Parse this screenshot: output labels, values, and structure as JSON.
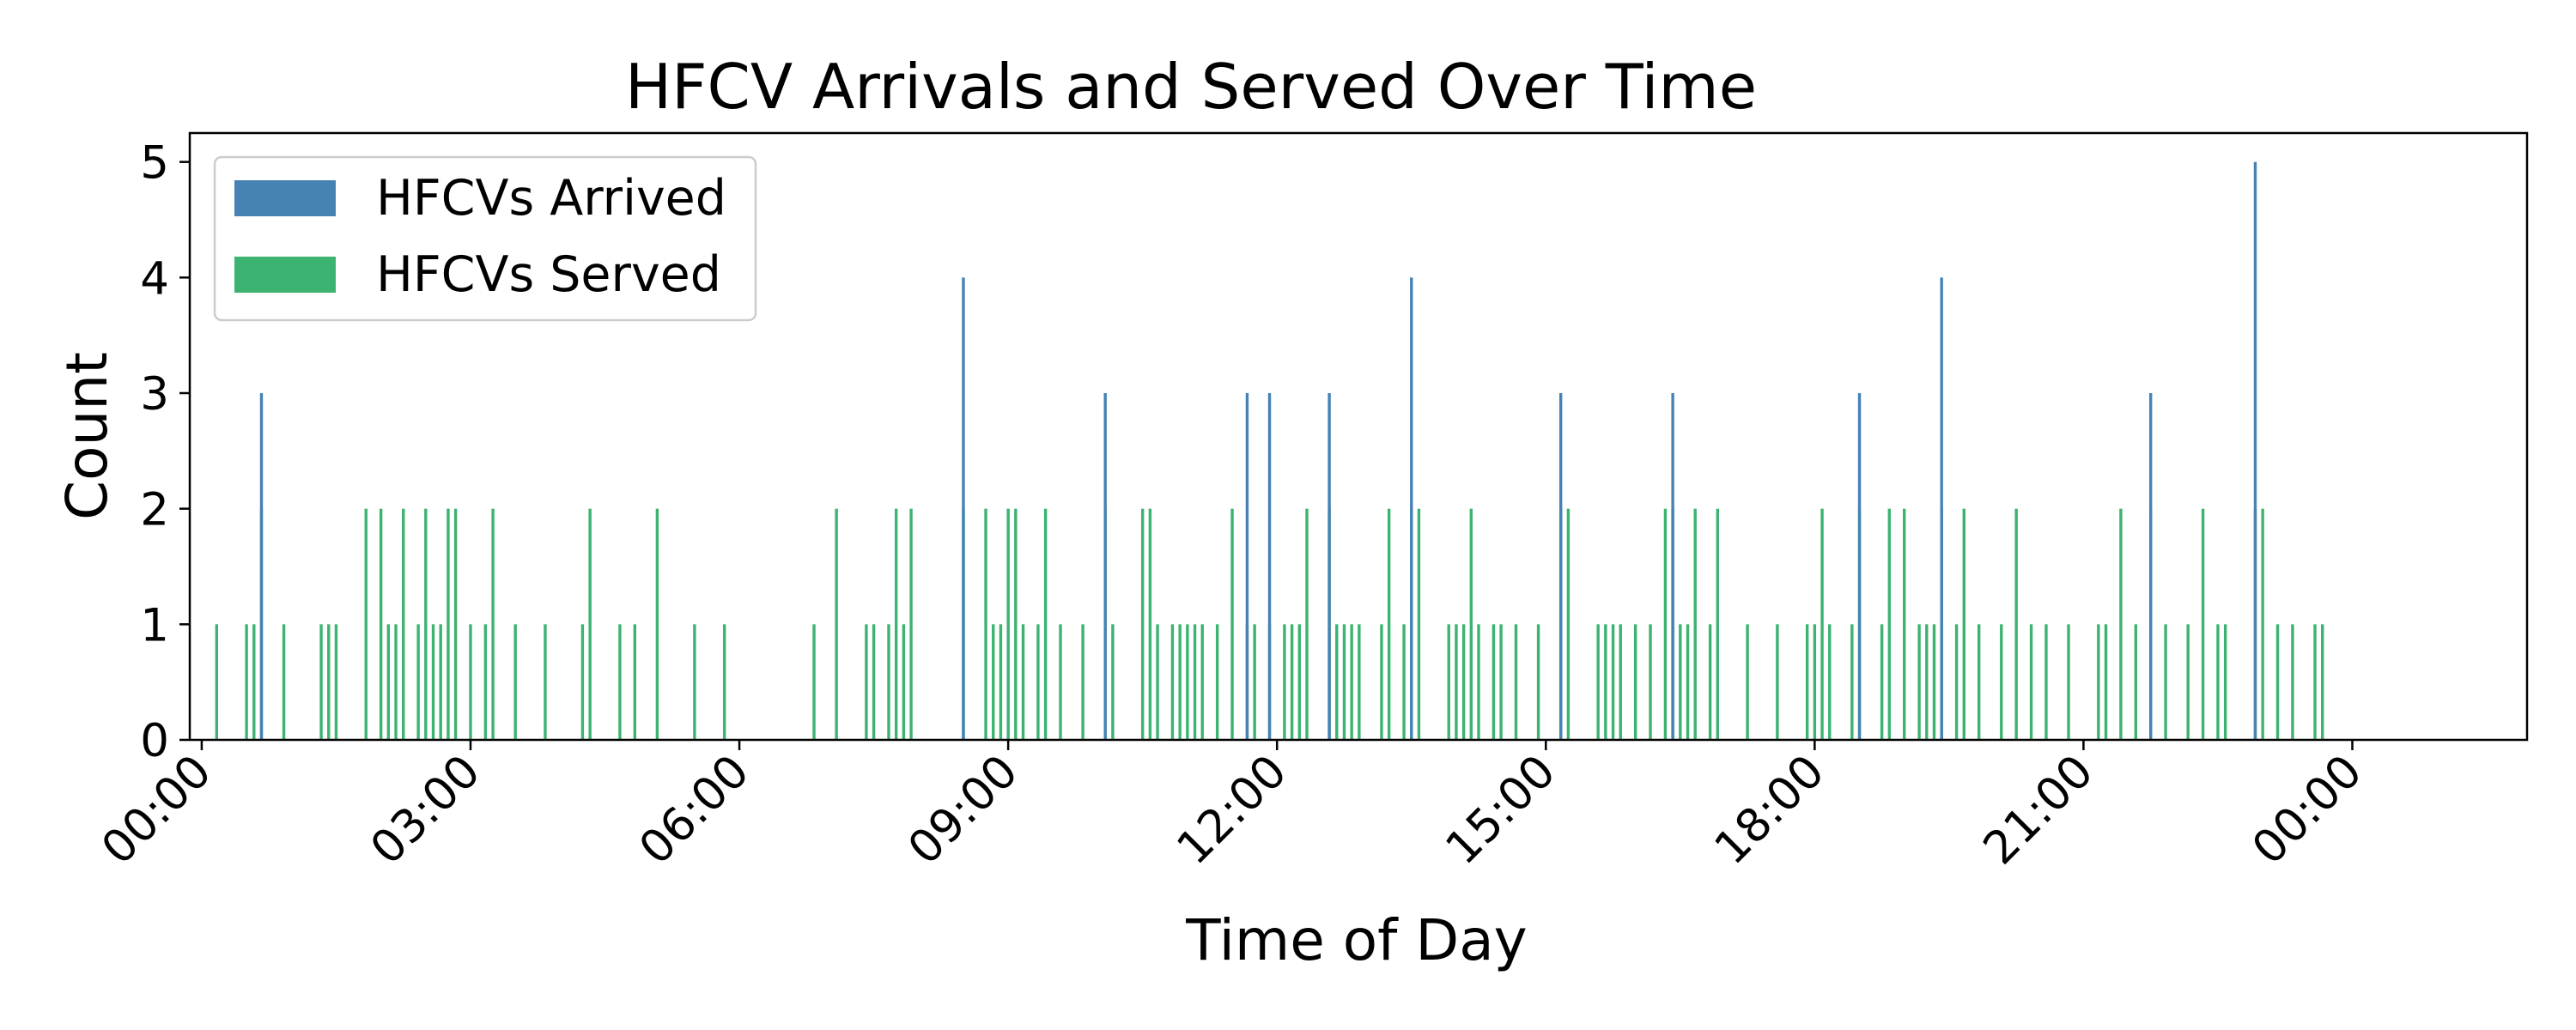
{
  "chart_data": {
    "type": "bar",
    "title": "HFCV Arrivals and Served Over Time",
    "xlabel": "Time of Day",
    "ylabel": "Count",
    "x_unit": "time of day (HH:MM)",
    "xlim": [
      "23:52",
      "25:57"
    ],
    "ylim": [
      0,
      5.25
    ],
    "x_ticks": [
      "00:00",
      "03:00",
      "06:00",
      "09:00",
      "12:00",
      "15:00",
      "18:00",
      "21:00",
      "00:00"
    ],
    "y_ticks": [
      "0",
      "1",
      "2",
      "3",
      "4",
      "5"
    ],
    "grid": false,
    "legend_position": "top-left",
    "colors": {
      "arrived": "#4682b4",
      "served": "#3cb371"
    },
    "series": [
      {
        "name": "HFCVs Arrived",
        "points": [
          {
            "x": "00:40",
            "y": 3
          },
          {
            "x": "08:30",
            "y": 4
          },
          {
            "x": "10:05",
            "y": 3
          },
          {
            "x": "11:40",
            "y": 3
          },
          {
            "x": "11:55",
            "y": 3
          },
          {
            "x": "12:35",
            "y": 3
          },
          {
            "x": "13:30",
            "y": 4
          },
          {
            "x": "15:10",
            "y": 3
          },
          {
            "x": "16:25",
            "y": 3
          },
          {
            "x": "18:30",
            "y": 3
          },
          {
            "x": "19:25",
            "y": 4
          },
          {
            "x": "21:45",
            "y": 3
          },
          {
            "x": "22:55",
            "y": 5
          }
        ]
      },
      {
        "name": "HFCVs Served",
        "points": [
          {
            "x": "00:10",
            "y": 1
          },
          {
            "x": "00:30",
            "y": 1
          },
          {
            "x": "00:35",
            "y": 1
          },
          {
            "x": "00:40",
            "y": 2
          },
          {
            "x": "00:55",
            "y": 1
          },
          {
            "x": "01:20",
            "y": 1
          },
          {
            "x": "01:25",
            "y": 1
          },
          {
            "x": "01:30",
            "y": 1
          },
          {
            "x": "01:50",
            "y": 2
          },
          {
            "x": "02:00",
            "y": 2
          },
          {
            "x": "02:05",
            "y": 1
          },
          {
            "x": "02:10",
            "y": 1
          },
          {
            "x": "02:15",
            "y": 2
          },
          {
            "x": "02:25",
            "y": 1
          },
          {
            "x": "02:30",
            "y": 2
          },
          {
            "x": "02:35",
            "y": 1
          },
          {
            "x": "02:40",
            "y": 1
          },
          {
            "x": "02:45",
            "y": 2
          },
          {
            "x": "02:50",
            "y": 2
          },
          {
            "x": "03:00",
            "y": 1
          },
          {
            "x": "03:10",
            "y": 1
          },
          {
            "x": "03:15",
            "y": 2
          },
          {
            "x": "03:30",
            "y": 1
          },
          {
            "x": "03:50",
            "y": 1
          },
          {
            "x": "04:15",
            "y": 1
          },
          {
            "x": "04:20",
            "y": 2
          },
          {
            "x": "04:40",
            "y": 1
          },
          {
            "x": "04:50",
            "y": 1
          },
          {
            "x": "05:05",
            "y": 2
          },
          {
            "x": "05:30",
            "y": 1
          },
          {
            "x": "05:50",
            "y": 1
          },
          {
            "x": "06:50",
            "y": 1
          },
          {
            "x": "07:05",
            "y": 2
          },
          {
            "x": "07:25",
            "y": 1
          },
          {
            "x": "07:30",
            "y": 1
          },
          {
            "x": "07:40",
            "y": 1
          },
          {
            "x": "07:45",
            "y": 2
          },
          {
            "x": "07:50",
            "y": 1
          },
          {
            "x": "07:55",
            "y": 2
          },
          {
            "x": "08:30",
            "y": 2
          },
          {
            "x": "08:45",
            "y": 2
          },
          {
            "x": "08:50",
            "y": 1
          },
          {
            "x": "08:55",
            "y": 1
          },
          {
            "x": "09:00",
            "y": 2
          },
          {
            "x": "09:05",
            "y": 2
          },
          {
            "x": "09:10",
            "y": 1
          },
          {
            "x": "09:20",
            "y": 1
          },
          {
            "x": "09:25",
            "y": 2
          },
          {
            "x": "09:35",
            "y": 1
          },
          {
            "x": "09:50",
            "y": 1
          },
          {
            "x": "10:05",
            "y": 2
          },
          {
            "x": "10:10",
            "y": 1
          },
          {
            "x": "10:30",
            "y": 2
          },
          {
            "x": "10:35",
            "y": 2
          },
          {
            "x": "10:40",
            "y": 1
          },
          {
            "x": "10:50",
            "y": 1
          },
          {
            "x": "10:55",
            "y": 1
          },
          {
            "x": "11:00",
            "y": 1
          },
          {
            "x": "11:05",
            "y": 1
          },
          {
            "x": "11:10",
            "y": 1
          },
          {
            "x": "11:20",
            "y": 1
          },
          {
            "x": "11:30",
            "y": 2
          },
          {
            "x": "11:40",
            "y": 1
          },
          {
            "x": "11:45",
            "y": 1
          },
          {
            "x": "11:55",
            "y": 1
          },
          {
            "x": "12:05",
            "y": 1
          },
          {
            "x": "12:10",
            "y": 1
          },
          {
            "x": "12:15",
            "y": 1
          },
          {
            "x": "12:20",
            "y": 2
          },
          {
            "x": "12:35",
            "y": 2
          },
          {
            "x": "12:40",
            "y": 1
          },
          {
            "x": "12:45",
            "y": 1
          },
          {
            "x": "12:50",
            "y": 1
          },
          {
            "x": "12:55",
            "y": 1
          },
          {
            "x": "13:10",
            "y": 1
          },
          {
            "x": "13:15",
            "y": 2
          },
          {
            "x": "13:25",
            "y": 1
          },
          {
            "x": "13:30",
            "y": 2
          },
          {
            "x": "13:35",
            "y": 2
          },
          {
            "x": "13:55",
            "y": 1
          },
          {
            "x": "14:00",
            "y": 1
          },
          {
            "x": "14:05",
            "y": 1
          },
          {
            "x": "14:10",
            "y": 2
          },
          {
            "x": "14:15",
            "y": 1
          },
          {
            "x": "14:25",
            "y": 1
          },
          {
            "x": "14:30",
            "y": 1
          },
          {
            "x": "14:40",
            "y": 1
          },
          {
            "x": "14:55",
            "y": 1
          },
          {
            "x": "15:10",
            "y": 2
          },
          {
            "x": "15:15",
            "y": 2
          },
          {
            "x": "15:35",
            "y": 1
          },
          {
            "x": "15:40",
            "y": 1
          },
          {
            "x": "15:45",
            "y": 1
          },
          {
            "x": "15:50",
            "y": 1
          },
          {
            "x": "16:00",
            "y": 1
          },
          {
            "x": "16:10",
            "y": 1
          },
          {
            "x": "16:20",
            "y": 2
          },
          {
            "x": "16:25",
            "y": 2
          },
          {
            "x": "16:30",
            "y": 1
          },
          {
            "x": "16:35",
            "y": 1
          },
          {
            "x": "16:40",
            "y": 2
          },
          {
            "x": "16:50",
            "y": 1
          },
          {
            "x": "16:55",
            "y": 2
          },
          {
            "x": "17:15",
            "y": 1
          },
          {
            "x": "17:35",
            "y": 1
          },
          {
            "x": "17:55",
            "y": 1
          },
          {
            "x": "18:00",
            "y": 1
          },
          {
            "x": "18:05",
            "y": 2
          },
          {
            "x": "18:10",
            "y": 1
          },
          {
            "x": "18:25",
            "y": 1
          },
          {
            "x": "18:30",
            "y": 2
          },
          {
            "x": "18:45",
            "y": 1
          },
          {
            "x": "18:50",
            "y": 2
          },
          {
            "x": "19:00",
            "y": 2
          },
          {
            "x": "19:10",
            "y": 1
          },
          {
            "x": "19:15",
            "y": 1
          },
          {
            "x": "19:20",
            "y": 1
          },
          {
            "x": "19:25",
            "y": 2
          },
          {
            "x": "19:35",
            "y": 1
          },
          {
            "x": "19:40",
            "y": 2
          },
          {
            "x": "19:50",
            "y": 1
          },
          {
            "x": "20:05",
            "y": 1
          },
          {
            "x": "20:15",
            "y": 2
          },
          {
            "x": "20:25",
            "y": 1
          },
          {
            "x": "20:35",
            "y": 1
          },
          {
            "x": "20:50",
            "y": 1
          },
          {
            "x": "21:10",
            "y": 1
          },
          {
            "x": "21:15",
            "y": 1
          },
          {
            "x": "21:25",
            "y": 2
          },
          {
            "x": "21:35",
            "y": 1
          },
          {
            "x": "21:45",
            "y": 2
          },
          {
            "x": "21:55",
            "y": 1
          },
          {
            "x": "22:10",
            "y": 1
          },
          {
            "x": "22:20",
            "y": 2
          },
          {
            "x": "22:30",
            "y": 1
          },
          {
            "x": "22:35",
            "y": 1
          },
          {
            "x": "22:55",
            "y": 2
          },
          {
            "x": "23:00",
            "y": 2
          },
          {
            "x": "23:10",
            "y": 1
          },
          {
            "x": "23:20",
            "y": 1
          },
          {
            "x": "23:35",
            "y": 1
          },
          {
            "x": "23:40",
            "y": 1
          }
        ]
      }
    ]
  }
}
